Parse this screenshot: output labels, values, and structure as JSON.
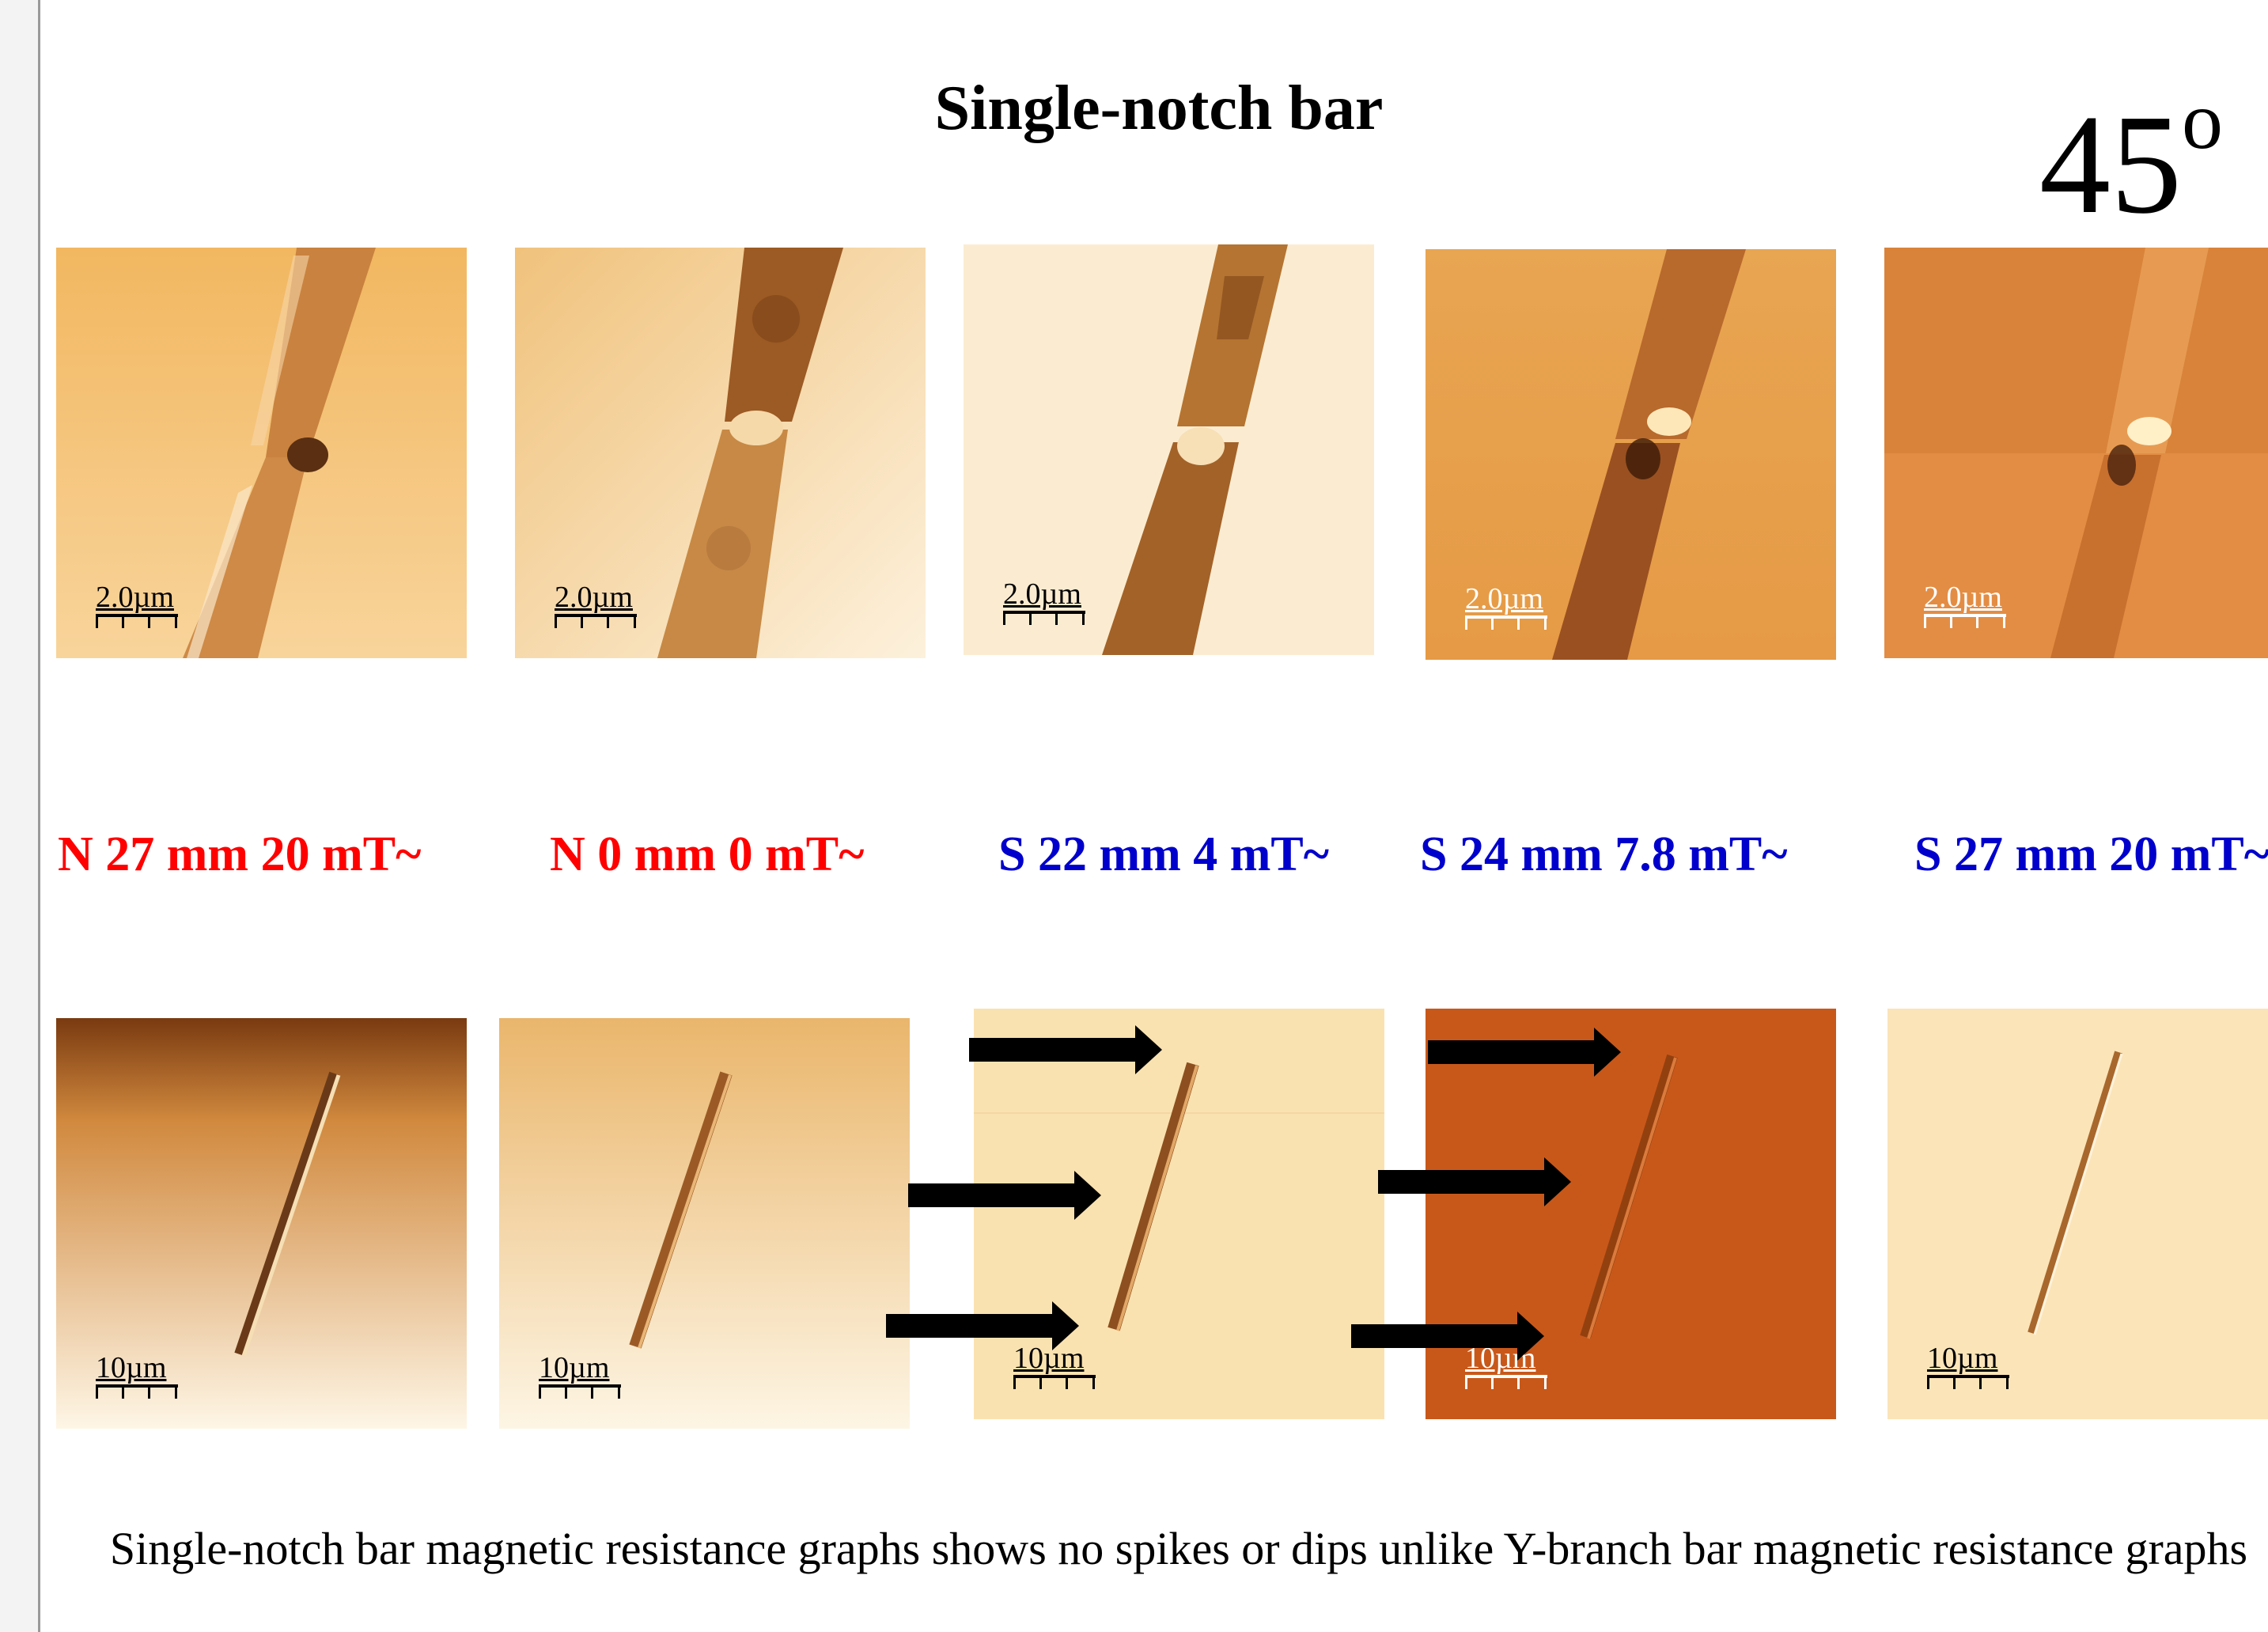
{
  "title": "Single-notch bar",
  "angle": {
    "value": "45",
    "unit": "o"
  },
  "top_row": [
    {
      "scale": "2.0µm"
    },
    {
      "scale": "2.0µm"
    },
    {
      "scale": "2.0µm"
    },
    {
      "scale": "2.0µm"
    },
    {
      "scale": "2.0µm"
    }
  ],
  "conditions": [
    {
      "text": "N 27 mm 20 mT~",
      "color": "#ff0000"
    },
    {
      "text": "N 0 mm 0 mT~",
      "color": "#ff0000"
    },
    {
      "text": "S 22 mm 4 mT~",
      "color": "#0000cc"
    },
    {
      "text": "S 24 mm 7.8 mT~",
      "color": "#0000cc"
    },
    {
      "text": "S 27 mm 20 mT~",
      "color": "#0000cc"
    }
  ],
  "bottom_row": [
    {
      "scale": "10µm"
    },
    {
      "scale": "10µm"
    },
    {
      "scale": "10µm"
    },
    {
      "scale": "10µm"
    },
    {
      "scale": "10µm"
    }
  ],
  "caption": "Single-notch bar magnetic resistance graphs shows no spikes or dips unlike Y-branch bar magnetic resistance graphs"
}
